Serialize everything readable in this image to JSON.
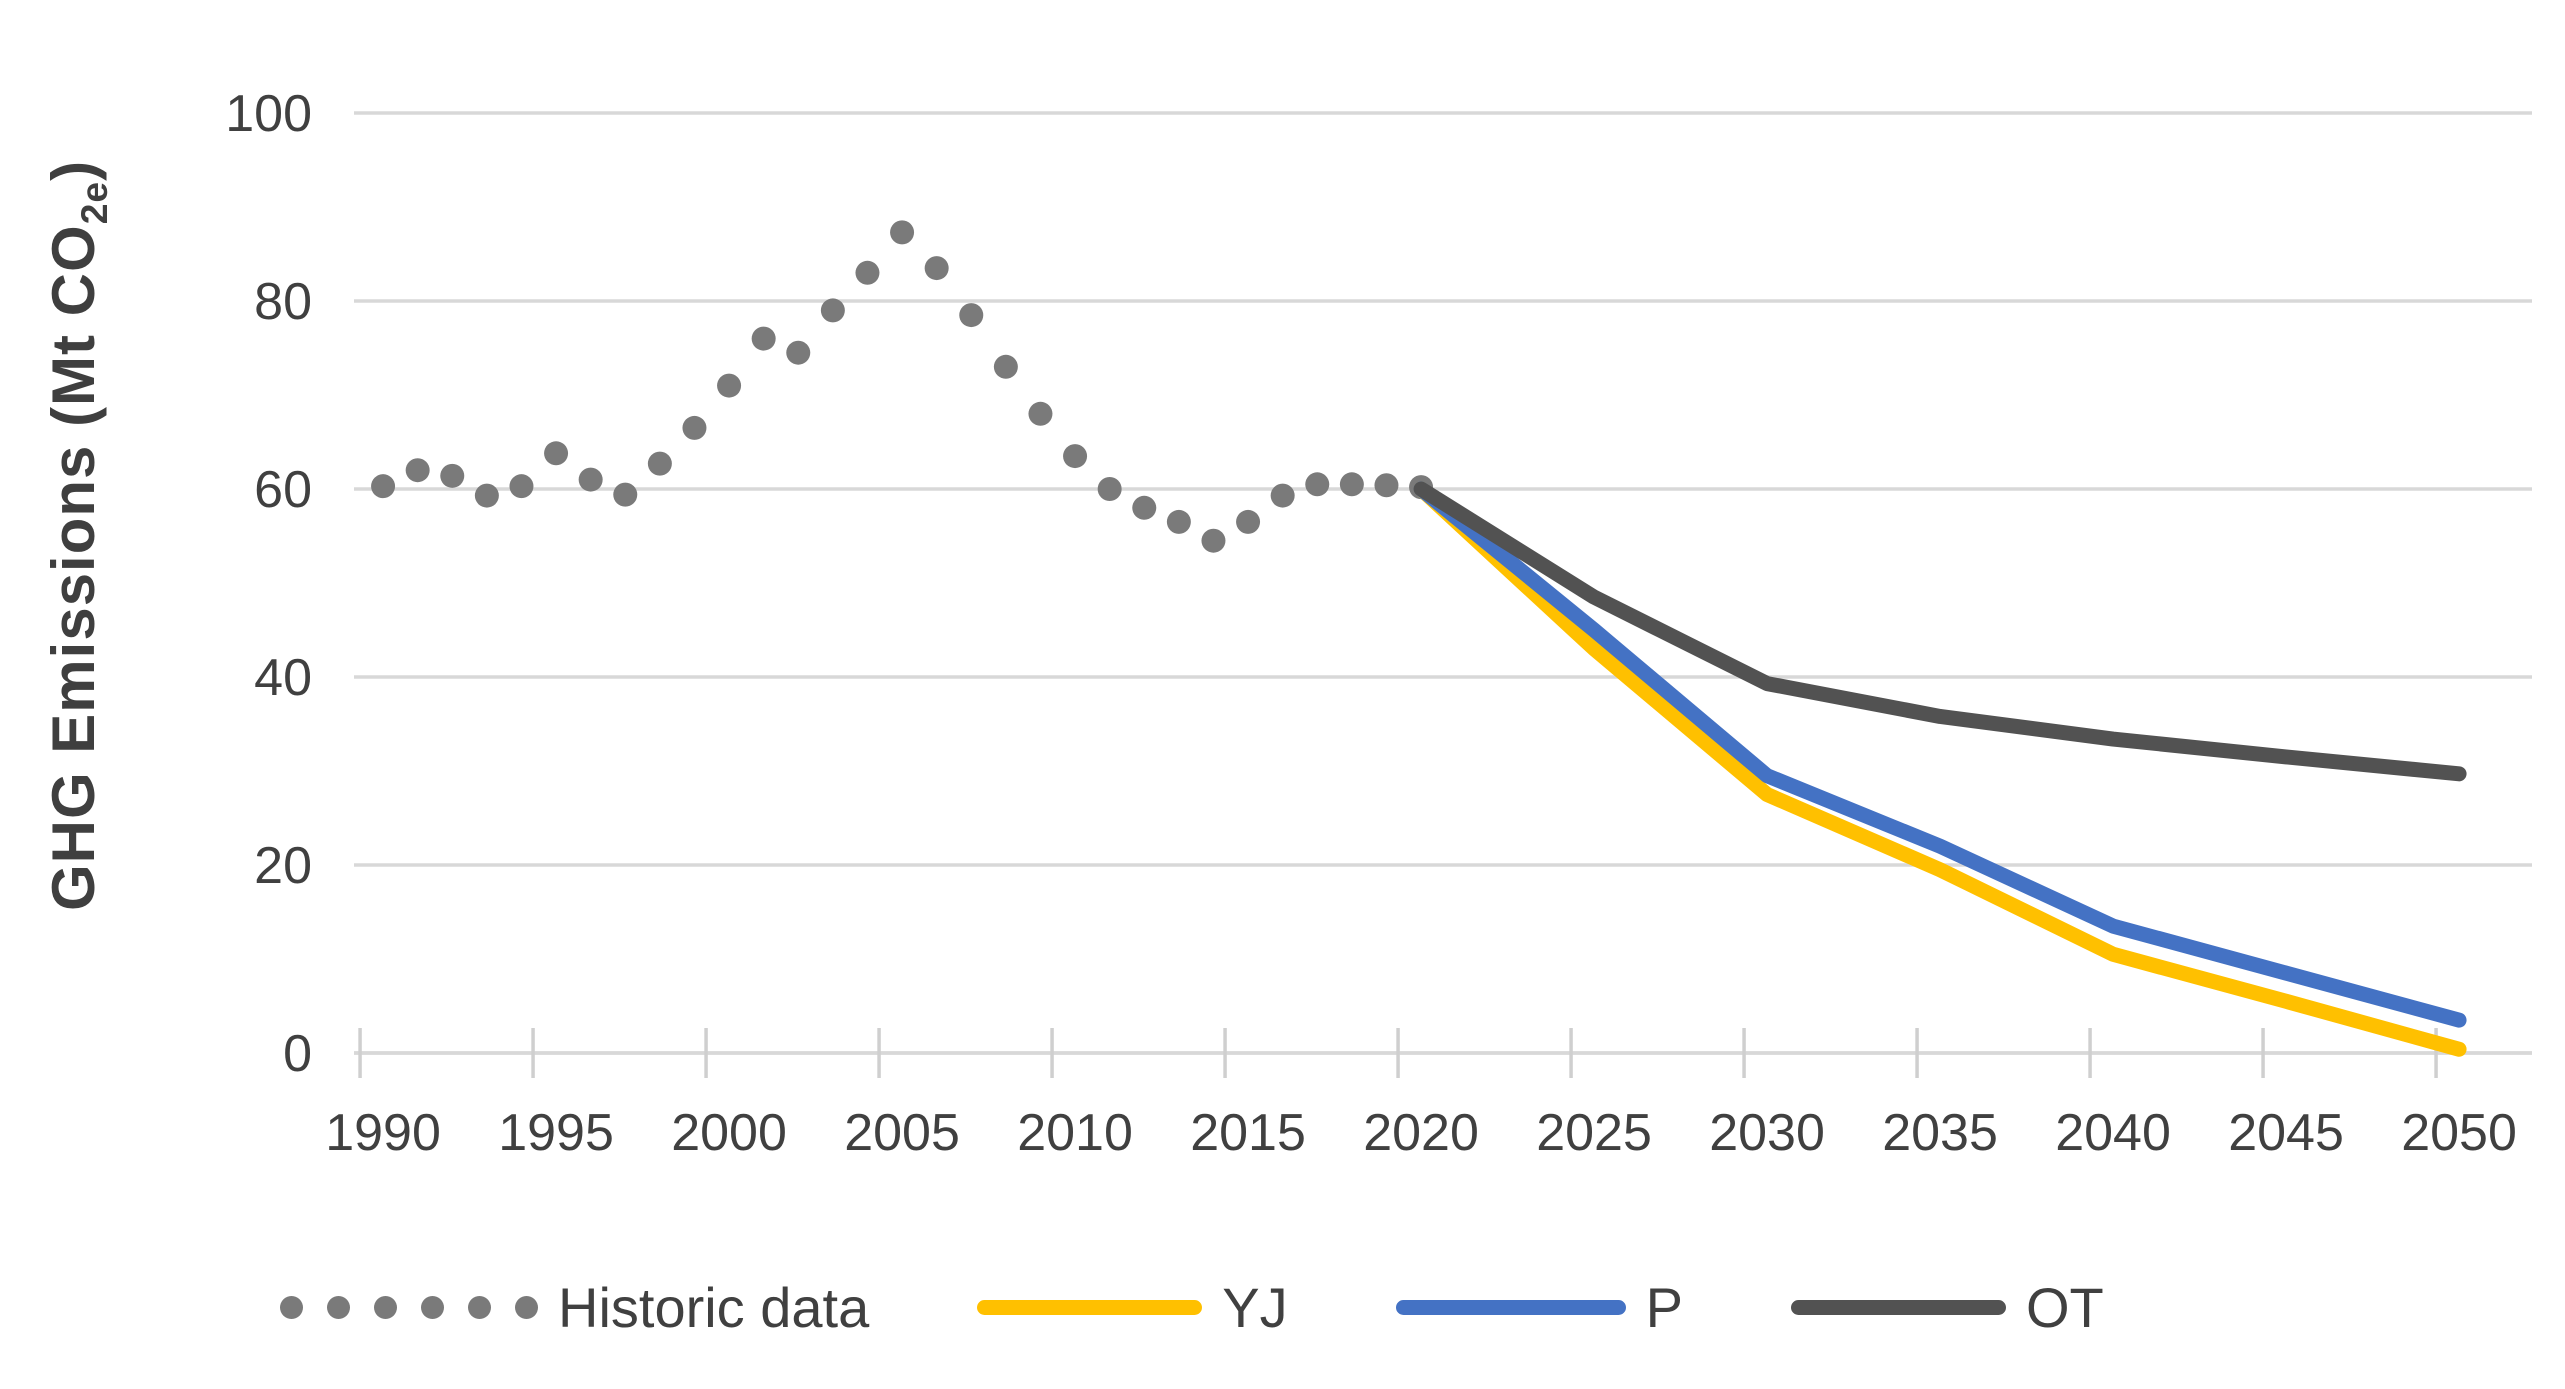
{
  "y_axis_title": {
    "prefix": "GHG Emissions (Mt CO",
    "subscript": "2e",
    "suffix": ")"
  },
  "chart_data": {
    "type": "line",
    "title": "",
    "xlabel": "",
    "ylabel": "GHG Emissions (Mt CO2e)",
    "xlim": [
      1989.2,
      2052.1
    ],
    "ylim": [
      0,
      100
    ],
    "x_ticks": [
      1990,
      1995,
      2000,
      2005,
      2010,
      2015,
      2020,
      2025,
      2030,
      2035,
      2040,
      2045,
      2050
    ],
    "y_ticks": [
      0,
      20,
      40,
      60,
      80,
      100
    ],
    "grid": "horizontal",
    "gridline_color": "#d8d8d8",
    "axis_text_color": "#404040",
    "legend_position": "bottom",
    "series": [
      {
        "name": "Historic data",
        "type": "scatter",
        "marker": "dot",
        "color": "#7a7a7a",
        "x": [
          1990,
          1991,
          1992,
          1993,
          1994,
          1995,
          1996,
          1997,
          1998,
          1999,
          2000,
          2001,
          2002,
          2003,
          2004,
          2005,
          2006,
          2007,
          2008,
          2009,
          2010,
          2011,
          2012,
          2013,
          2014,
          2015,
          2016,
          2017,
          2018,
          2019,
          2020
        ],
        "values": [
          60.3,
          62.0,
          61.4,
          59.3,
          60.3,
          63.8,
          61.0,
          59.4,
          62.7,
          66.5,
          71.0,
          76.0,
          74.5,
          79.0,
          83.0,
          87.3,
          83.5,
          78.5,
          73.0,
          68.0,
          63.5,
          60.0,
          58.0,
          56.5,
          54.5,
          56.5,
          59.3,
          60.5,
          60.5,
          60.4,
          60.2
        ]
      },
      {
        "name": "YJ",
        "type": "line",
        "color": "#ffc000",
        "x": [
          2020,
          2025,
          2030,
          2035,
          2040,
          2045,
          2050
        ],
        "values": [
          60,
          43,
          27.5,
          19.5,
          10.5,
          5.5,
          0.4
        ]
      },
      {
        "name": "P",
        "type": "line",
        "color": "#4472c4",
        "x": [
          2020,
          2025,
          2030,
          2035,
          2040,
          2045,
          2050
        ],
        "values": [
          60,
          45,
          29.5,
          22,
          13.5,
          8.5,
          3.5
        ]
      },
      {
        "name": "OT",
        "type": "line",
        "color": "#525252",
        "x": [
          2020,
          2025,
          2030,
          2035,
          2040,
          2045,
          2050
        ],
        "values": [
          60,
          48.5,
          39.3,
          35.8,
          33.4,
          31.5,
          29.7
        ]
      }
    ]
  }
}
